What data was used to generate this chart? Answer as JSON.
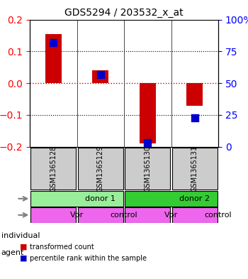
{
  "title": "GDS5294 / 203532_x_at",
  "samples": [
    "GSM1365128",
    "GSM1365129",
    "GSM1365130",
    "GSM1365131"
  ],
  "transformed_counts": [
    0.155,
    0.04,
    -0.19,
    -0.07
  ],
  "percentile_ranks": [
    0.82,
    0.57,
    0.03,
    0.23
  ],
  "ylim_left": [
    -0.2,
    0.2
  ],
  "ylim_right": [
    0,
    100
  ],
  "yticks_left": [
    -0.2,
    -0.1,
    0.0,
    0.1,
    0.2
  ],
  "yticks_right": [
    0,
    25,
    50,
    75,
    100
  ],
  "ytick_labels_right": [
    "0",
    "25",
    "50",
    "75",
    "100%"
  ],
  "bar_color": "#cc0000",
  "dot_color": "#0000cc",
  "zero_line_color": "#cc0000",
  "grid_color": "#000000",
  "individuals": [
    {
      "label": "donor 1",
      "start": 0,
      "end": 2,
      "color": "#99ee99"
    },
    {
      "label": "donor 2",
      "start": 2,
      "end": 4,
      "color": "#33cc33"
    }
  ],
  "agents": [
    {
      "label": "Vpr",
      "start": 0,
      "end": 1,
      "color": "#ee66ee"
    },
    {
      "label": "control",
      "start": 1,
      "end": 2,
      "color": "#ee66ee"
    },
    {
      "label": "Vpr",
      "start": 2,
      "end": 3,
      "color": "#ee66ee"
    },
    {
      "label": "control",
      "start": 3,
      "end": 4,
      "color": "#ee66ee"
    }
  ],
  "sample_box_color": "#cccccc",
  "legend_red_label": "transformed count",
  "legend_blue_label": "percentile rank within the sample",
  "individual_label": "individual",
  "agent_label": "agent",
  "bar_width": 0.35,
  "dot_size": 60
}
